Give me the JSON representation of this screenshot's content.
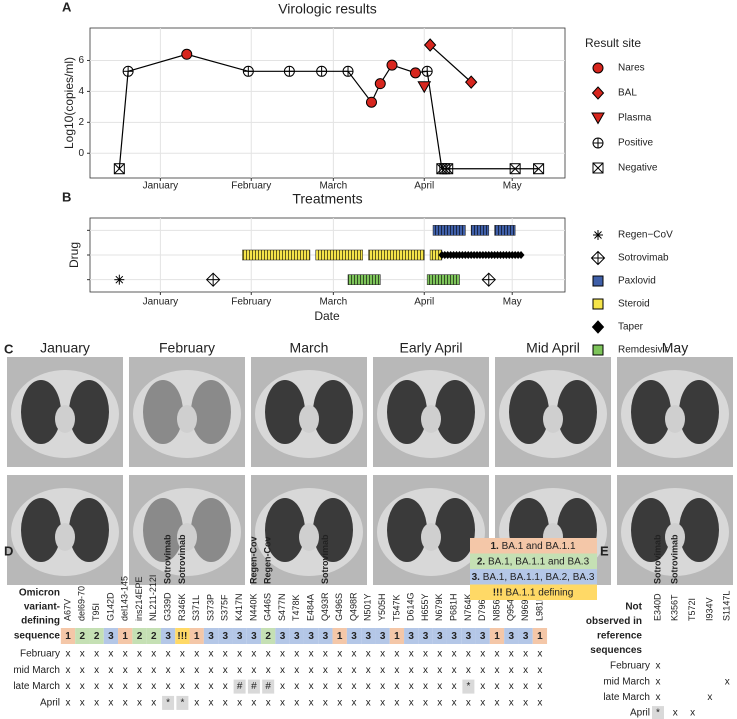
{
  "chart_data": [
    {
      "type": "scatter",
      "label": "A",
      "title": "Virologic results",
      "y_label": "Log10(copies/ml)",
      "legend_title": "Result site",
      "xlim": [
        -23,
        139
      ],
      "xticks": [
        {
          "value": 1,
          "label": "January"
        },
        {
          "value": 32,
          "label": "February"
        },
        {
          "value": 60,
          "label": "March"
        },
        {
          "value": 91,
          "label": "April"
        },
        {
          "value": 121,
          "label": "May"
        }
      ],
      "ylim": [
        -1.6,
        8.1
      ],
      "yticks": [
        0,
        2,
        4,
        6
      ],
      "grid": true,
      "series": [
        {
          "name": "Nares",
          "marker": "circle",
          "color": "#d7261e",
          "line_group": 1,
          "x": [
            10,
            73,
            76,
            80,
            88
          ],
          "values": [
            6.4,
            3.3,
            4.5,
            5.7,
            5.2
          ]
        },
        {
          "name": "BAL",
          "marker": "diamond",
          "color": "#d7261e",
          "line_group": 2,
          "x": [
            93,
            107
          ],
          "values": [
            7.0,
            4.6
          ]
        },
        {
          "name": "Plasma",
          "marker": "triangle",
          "color": "#d7261e",
          "x": [
            91
          ],
          "values": [
            4.3
          ]
        },
        {
          "name": "Positive",
          "marker": "circle-plus",
          "color": "none",
          "line_group": 1,
          "x": [
            -10,
            31,
            45,
            56,
            65,
            92
          ],
          "values": [
            5.3,
            5.3,
            5.3,
            5.3,
            5.3,
            5.3
          ]
        },
        {
          "name": "Negative",
          "marker": "square-x",
          "color": "none",
          "line_group": 1,
          "x": [
            -13,
            97,
            98,
            99,
            122,
            130
          ],
          "values": [
            -1,
            -1,
            -1,
            -1,
            -1,
            -1
          ]
        }
      ]
    },
    {
      "type": "timeline",
      "label": "B",
      "title": "Treatments",
      "y_label": "Drug",
      "x_label": "Date",
      "categories": [
        null,
        null,
        null
      ],
      "xlim": [
        -23,
        139
      ],
      "xticks": [
        {
          "value": 1,
          "label": "January"
        },
        {
          "value": 32,
          "label": "February"
        },
        {
          "value": 60,
          "label": "March"
        },
        {
          "value": 91,
          "label": "April"
        },
        {
          "value": 121,
          "label": "May"
        }
      ],
      "grid": true,
      "series": [
        {
          "name": "Regen−CoV",
          "marker": "asterisk",
          "color": "#000000",
          "row": 2,
          "x": [
            -13
          ]
        },
        {
          "name": "Sotrovimab",
          "marker": "diamond-plus",
          "color": "none",
          "row": 2,
          "x": [
            19,
            113
          ]
        },
        {
          "name": "Paxlovid",
          "marker": "square",
          "color": "#3f5fa8",
          "row": 0,
          "start": [
            94,
            107,
            115
          ],
          "end": [
            105,
            113,
            122
          ]
        },
        {
          "name": "Steroid",
          "marker": "square",
          "color": "#f5e44a",
          "row": 1,
          "start": [
            29,
            54,
            72,
            93
          ],
          "end": [
            52,
            70,
            91,
            97
          ]
        },
        {
          "name": "Taper",
          "marker": "diamond",
          "color": "#000000",
          "row": 1,
          "start": [
            97
          ],
          "end": [
            124
          ]
        },
        {
          "name": "Remdesivir",
          "marker": "square",
          "color": "#7dc45a",
          "row": 2,
          "start": [
            65,
            92
          ],
          "end": [
            76,
            103
          ]
        }
      ]
    }
  ],
  "ct_panel": {
    "label": "C",
    "columns": [
      "January",
      "February",
      "March",
      "Early April",
      "Mid April",
      "May"
    ]
  },
  "mutation_table": {
    "label": "D",
    "header_left": [
      "Omicron",
      "variant-",
      "defining"
    ],
    "sequence_label": "sequence",
    "mutations": [
      "A67V",
      "del69-70",
      "T95I",
      "G142D",
      "del143-145",
      "ins214EPE",
      "NL211-212I",
      "G339D",
      "R346K",
      "S371L",
      "S373P",
      "S375F",
      "K417N",
      "N440K",
      "G446S",
      "S477N",
      "T478K",
      "E484A",
      "Q493R",
      "G496S",
      "Q498R",
      "N501Y",
      "Y505H",
      "T547K",
      "D614G",
      "H655Y",
      "N679K",
      "P681H",
      "N764K",
      "D796Y",
      "N856K",
      "Q954H",
      "N969K",
      "L981F"
    ],
    "antibody": [
      null,
      null,
      null,
      null,
      null,
      null,
      null,
      "Sotrovimab",
      "Sotrovimab",
      null,
      null,
      null,
      null,
      "Regen-Cov",
      "Regen-Cov",
      null,
      null,
      null,
      "Sotrovimab",
      null,
      null,
      null,
      null,
      null,
      null,
      null,
      null,
      null,
      null,
      null,
      null,
      null,
      null,
      null
    ],
    "sequence": [
      1,
      2,
      2,
      3,
      1,
      2,
      2,
      3,
      "!!!",
      1,
      3,
      3,
      3,
      3,
      2,
      3,
      3,
      3,
      3,
      1,
      3,
      3,
      3,
      1,
      3,
      3,
      3,
      3,
      3,
      3,
      1,
      3,
      3,
      1
    ],
    "legend": [
      {
        "label": "1.",
        "text": "BA.1 and BA.1.1",
        "color": "#f4c7a8"
      },
      {
        "label": "2.",
        "text": "BA.1, BA.1.1 and BA.3",
        "color": "#c5e0b4"
      },
      {
        "label": "3.",
        "text": "BA.1, BA.1.1, BA.2, BA.3",
        "color": "#b4c7e7"
      },
      {
        "label": "!!!",
        "text": "BA.1.1 defining",
        "color": "#ffd966"
      }
    ],
    "rows": [
      {
        "name": "February",
        "cells": [
          "x",
          "x",
          "x",
          "x",
          "x",
          "x",
          "x",
          "x",
          "x",
          "x",
          "x",
          "x",
          "x",
          "x",
          "x",
          "x",
          "x",
          "x",
          "x",
          "x",
          "x",
          "x",
          "x",
          "x",
          "x",
          "x",
          "x",
          "x",
          "x",
          "x",
          "x",
          "x",
          "x",
          "x"
        ]
      },
      {
        "name": "mid March",
        "cells": [
          "x",
          "x",
          "x",
          "x",
          "x",
          "x",
          "x",
          "x",
          "x",
          "x",
          "x",
          "x",
          "x",
          "x",
          "x",
          "x",
          "x",
          "x",
          "x",
          "x",
          "x",
          "x",
          "x",
          "x",
          "x",
          "x",
          "x",
          "x",
          "x",
          "x",
          "x",
          "x",
          "x",
          "x"
        ]
      },
      {
        "name": "late March",
        "cells": [
          "x",
          "x",
          "x",
          "x",
          "x",
          "x",
          "x",
          "x",
          "x",
          "x",
          "x",
          "x",
          "#",
          "#",
          "#",
          "x",
          "x",
          "x",
          "x",
          "x",
          "x",
          "x",
          "x",
          "x",
          "x",
          "x",
          "x",
          "x",
          "*",
          "x",
          "x",
          "x",
          "x",
          "x"
        ]
      },
      {
        "name": "April",
        "cells": [
          "x",
          "x",
          "x",
          "x",
          "x",
          "x",
          "x",
          "*",
          "*",
          "x",
          "x",
          "x",
          "x",
          "x",
          "x",
          "x",
          "x",
          "x",
          "x",
          "x",
          "x",
          "x",
          "x",
          "x",
          "x",
          "x",
          "x",
          "x",
          "x",
          "x",
          "x",
          "x",
          "x",
          "x"
        ]
      }
    ]
  },
  "novel_table": {
    "label": "E",
    "header_left": [
      "Not",
      "observed in",
      "reference",
      "sequences"
    ],
    "mutations": [
      "E340D",
      "K356T",
      "T572I",
      "I934V",
      "S1147L"
    ],
    "antibody": [
      "Sotrovimab",
      "Sotrovimab",
      null,
      null,
      null
    ],
    "rows": [
      {
        "name": "February",
        "cells": [
          "x",
          null,
          null,
          null,
          null
        ]
      },
      {
        "name": "mid March",
        "cells": [
          "x",
          null,
          null,
          null,
          "x"
        ]
      },
      {
        "name": "late March",
        "cells": [
          "x",
          null,
          null,
          "x",
          null
        ]
      },
      {
        "name": "April",
        "cells": [
          "*",
          "x",
          "x",
          null,
          null
        ]
      }
    ]
  }
}
